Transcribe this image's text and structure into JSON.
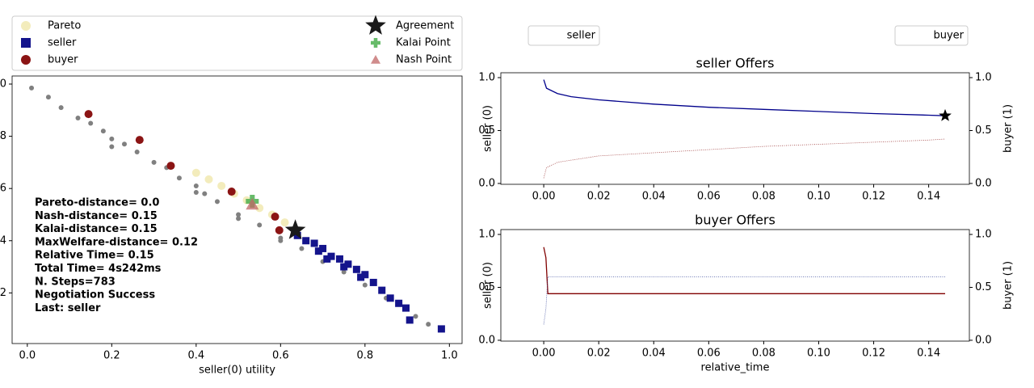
{
  "chart_data": [
    {
      "type": "scatter",
      "xlabel": "seller(0) utility",
      "xlim": [
        -0.036,
        1.03
      ],
      "ylim": [
        0.006,
        1.031
      ],
      "xticks": [
        {
          "value": 0,
          "label": "0.0"
        },
        0.2,
        0.4,
        0.6,
        0.8,
        {
          "value": 1,
          "label": "1.0"
        }
      ],
      "yticks": [
        0.2,
        0.4,
        0.6,
        0.8,
        {
          "value": 1,
          "label": "1.0"
        }
      ],
      "legend": "above",
      "outcomes": {
        "color": "#808080",
        "x": [
          0.01,
          0.05,
          0.08,
          0.12,
          0.15,
          0.18,
          0.2,
          0.23,
          0.26,
          0.3,
          0.33,
          0.36,
          0.4,
          0.42,
          0.45,
          0.5,
          0.55,
          0.6,
          0.65,
          0.7,
          0.75,
          0.8,
          0.85,
          0.88,
          0.92,
          0.95,
          0.98,
          0.2,
          0.4,
          0.5,
          0.6
        ],
        "values": [
          0.985,
          0.95,
          0.91,
          0.87,
          0.85,
          0.82,
          0.79,
          0.77,
          0.74,
          0.7,
          0.68,
          0.64,
          0.61,
          0.58,
          0.55,
          0.5,
          0.46,
          0.41,
          0.37,
          0.32,
          0.28,
          0.23,
          0.18,
          0.16,
          0.11,
          0.08,
          0.06,
          0.76,
          0.585,
          0.485,
          0.4
        ]
      },
      "series": [
        {
          "name": "Pareto",
          "color": "#f3ecbc",
          "marker": "circle",
          "x": [
            0.4,
            0.43,
            0.46,
            0.49,
            0.52,
            0.55,
            0.58,
            0.61
          ],
          "values": [
            0.66,
            0.635,
            0.61,
            0.58,
            0.555,
            0.525,
            0.5,
            0.47
          ]
        },
        {
          "name": "seller",
          "color": "#14148c",
          "marker": "square",
          "x": [
            0.64,
            0.66,
            0.68,
            0.7,
            0.72,
            0.74,
            0.76,
            0.78,
            0.8,
            0.82,
            0.84,
            0.86,
            0.88,
            0.897,
            0.906,
            0.981,
            0.71,
            0.75,
            0.69,
            0.79
          ],
          "values": [
            0.42,
            0.4,
            0.39,
            0.37,
            0.34,
            0.33,
            0.31,
            0.29,
            0.27,
            0.24,
            0.21,
            0.18,
            0.16,
            0.142,
            0.096,
            0.062,
            0.33,
            0.3,
            0.36,
            0.26
          ]
        },
        {
          "name": "buyer",
          "color": "#8b1414",
          "marker": "circle",
          "x": [
            0.145,
            0.266,
            0.34,
            0.484,
            0.587,
            0.597
          ],
          "values": [
            0.885,
            0.786,
            0.687,
            0.588,
            0.492,
            0.44
          ]
        },
        {
          "name": "Agreement",
          "color": "#1a1a1a",
          "marker": "star",
          "x": [
            0.635
          ],
          "values": [
            0.44
          ]
        },
        {
          "name": "Kalai Point",
          "color": "#4caf50",
          "marker": "plus",
          "x": [
            0.533
          ],
          "values": [
            0.551
          ]
        },
        {
          "name": "Nash Point",
          "color": "#c06666",
          "marker": "triangle",
          "x": [
            0.533
          ],
          "values": [
            0.539
          ]
        }
      ],
      "annotation": [
        "Pareto-distance=  0.0",
        "Nash-distance= 0.15",
        "Kalai-distance= 0.15",
        "MaxWelfare-distance= 0.12",
        "Relative Time= 0.15",
        "Total Time= 4s242ms",
        "N. Steps=783",
        "Negotiation Success",
        "Last: seller"
      ]
    },
    {
      "type": "line",
      "title": "seller Offers",
      "ylabel": "seller (0)",
      "y2label": "buyer (1)",
      "xlim": [
        -0.0156,
        0.1548
      ],
      "ylim": [
        -0.008,
        1.046
      ],
      "y2lim": [
        -0.008,
        1.046
      ],
      "xticks": [
        {
          "value": 0,
          "label": "0.00"
        },
        {
          "value": 0.02,
          "label": "0.02"
        },
        {
          "value": 0.04,
          "label": "0.04"
        },
        {
          "value": 0.06,
          "label": "0.06"
        },
        {
          "value": 0.08,
          "label": "0.08"
        },
        {
          "value": 0.1,
          "label": "0.10"
        },
        {
          "value": 0.12,
          "label": "0.12"
        },
        {
          "value": 0.14,
          "label": "0.14"
        }
      ],
      "yticks": [
        {
          "value": 0,
          "label": "0.0"
        },
        0.5,
        {
          "value": 1,
          "label": "1.0"
        }
      ],
      "y2ticks": [
        {
          "value": 0,
          "label": "0.0"
        },
        0.5,
        {
          "value": 1,
          "label": "1.0"
        }
      ],
      "legend": "top-split",
      "series": [
        {
          "name": "seller",
          "color": "#00008b",
          "style": "solid",
          "x": [
            0,
            0.001,
            0.005,
            0.01,
            0.02,
            0.04,
            0.06,
            0.08,
            0.1,
            0.12,
            0.14,
            0.146
          ],
          "values": [
            0.98,
            0.9,
            0.85,
            0.82,
            0.79,
            0.75,
            0.72,
            0.7,
            0.68,
            0.66,
            0.645,
            0.64
          ]
        },
        {
          "name": "buyer",
          "color": "#a04040",
          "style": "dotted",
          "axis": "y2",
          "x": [
            0,
            0.001,
            0.005,
            0.01,
            0.02,
            0.04,
            0.06,
            0.08,
            0.1,
            0.12,
            0.14,
            0.146
          ],
          "values": [
            0.05,
            0.15,
            0.2,
            0.22,
            0.26,
            0.29,
            0.32,
            0.35,
            0.37,
            0.39,
            0.41,
            0.42
          ]
        }
      ],
      "agreement": {
        "x": 0.146,
        "value": 0.64,
        "color": "#000000"
      }
    },
    {
      "type": "line",
      "title": "buyer Offers",
      "xlabel": "relative_time",
      "ylabel": "seller (0)",
      "y2label": "buyer (1)",
      "xlim": [
        -0.0156,
        0.1548
      ],
      "ylim": [
        -0.008,
        1.046
      ],
      "y2lim": [
        -0.008,
        1.046
      ],
      "xticks": [
        {
          "value": 0,
          "label": "0.00"
        },
        {
          "value": 0.02,
          "label": "0.02"
        },
        {
          "value": 0.04,
          "label": "0.04"
        },
        {
          "value": 0.06,
          "label": "0.06"
        },
        {
          "value": 0.08,
          "label": "0.08"
        },
        {
          "value": 0.1,
          "label": "0.10"
        },
        {
          "value": 0.12,
          "label": "0.12"
        },
        {
          "value": 0.14,
          "label": "0.14"
        }
      ],
      "yticks": [
        {
          "value": 0,
          "label": "0.0"
        },
        0.5,
        {
          "value": 1,
          "label": "1.0"
        }
      ],
      "y2ticks": [
        {
          "value": 0,
          "label": "0.0"
        },
        0.5,
        {
          "value": 1,
          "label": "1.0"
        }
      ],
      "series": [
        {
          "color": "#800000",
          "style": "solid",
          "x": [
            0,
            0.0008,
            0.0015,
            0.146
          ],
          "values": [
            0.88,
            0.78,
            0.44,
            0.44
          ]
        },
        {
          "color": "#4050a0",
          "style": "dotted",
          "axis": "y2",
          "x": [
            0,
            0.0008,
            0.0015,
            0.146
          ],
          "values": [
            0.15,
            0.3,
            0.6,
            0.6
          ]
        }
      ]
    }
  ]
}
